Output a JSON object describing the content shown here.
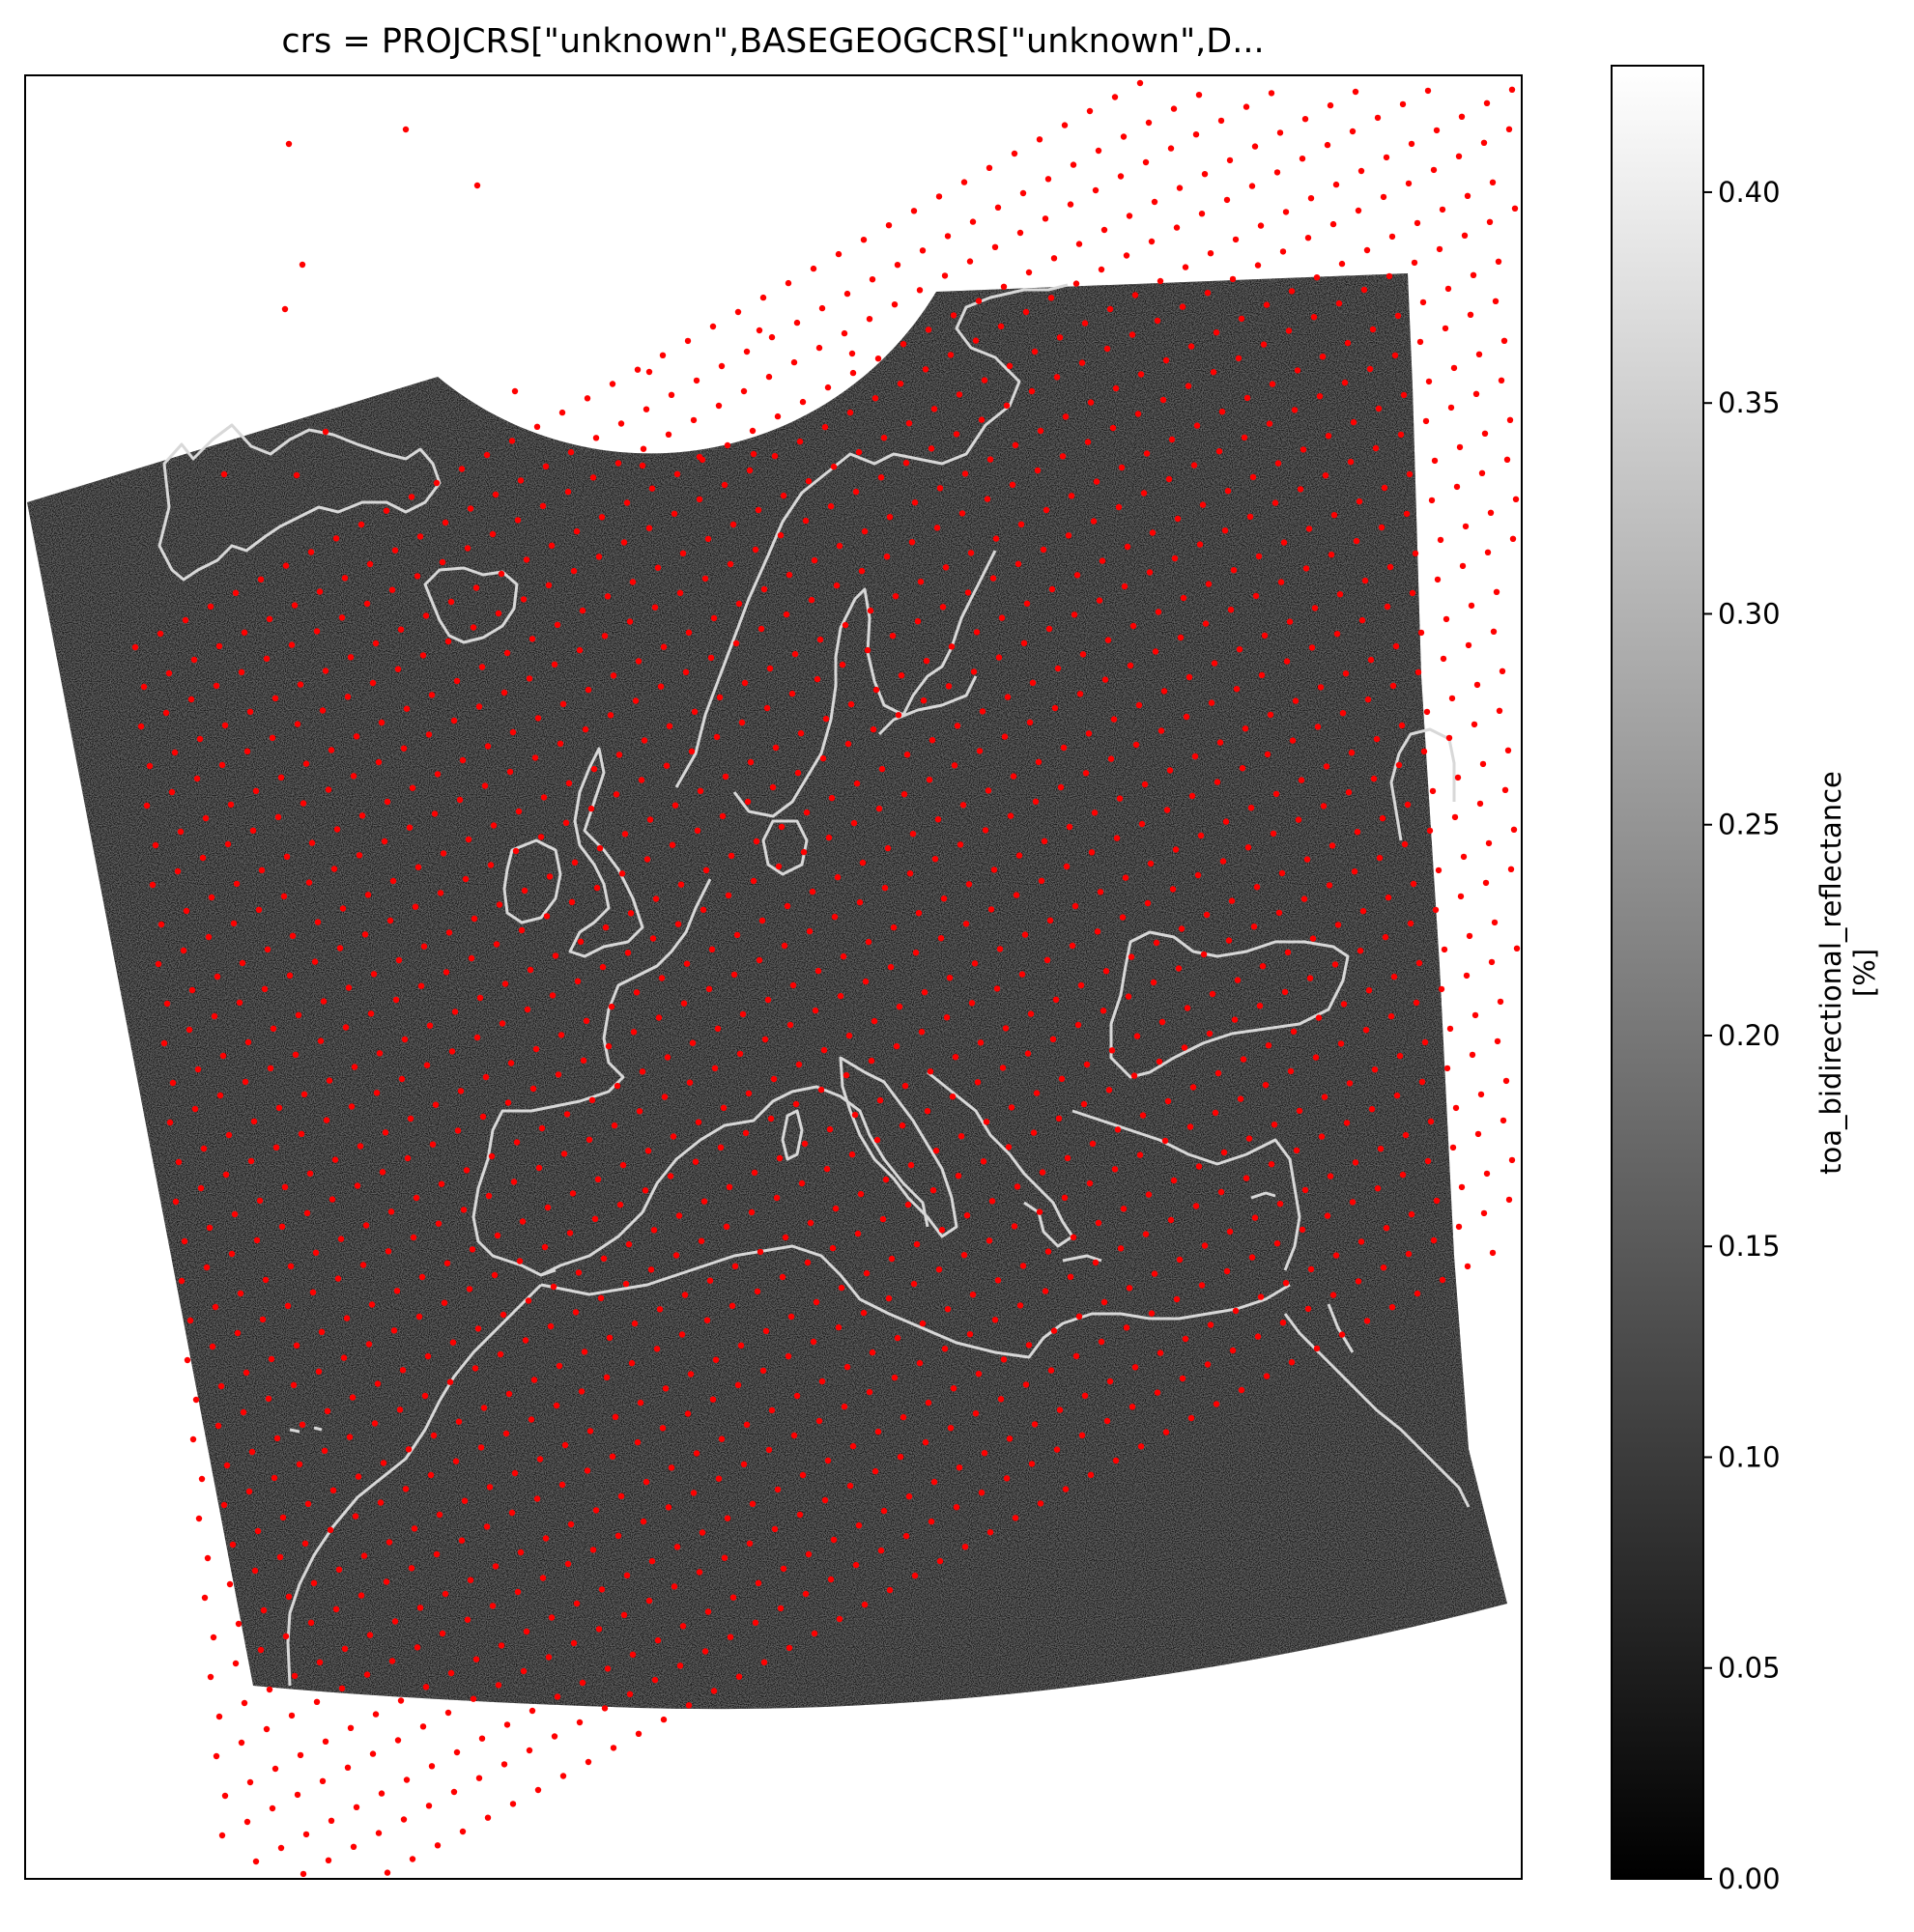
{
  "title": "crs = PROJCRS[\"unknown\",BASEGEOGCRS[\"unknown\",D...",
  "colorbar": {
    "label": "toa_bidirectional_reflectance",
    "units": "[%]",
    "ticks": [
      "0.00",
      "0.05",
      "0.10",
      "0.15",
      "0.20",
      "0.25",
      "0.30",
      "0.35",
      "0.40"
    ],
    "tick_values": [
      0.0,
      0.05,
      0.1,
      0.15,
      0.2,
      0.25,
      0.3,
      0.35,
      0.4
    ],
    "range": [
      0.0,
      0.43
    ],
    "cmap": "gray"
  },
  "colors": {
    "points": "#ff0000",
    "coastline": "#d8d8d8",
    "swath": "#1e1e1e"
  }
}
